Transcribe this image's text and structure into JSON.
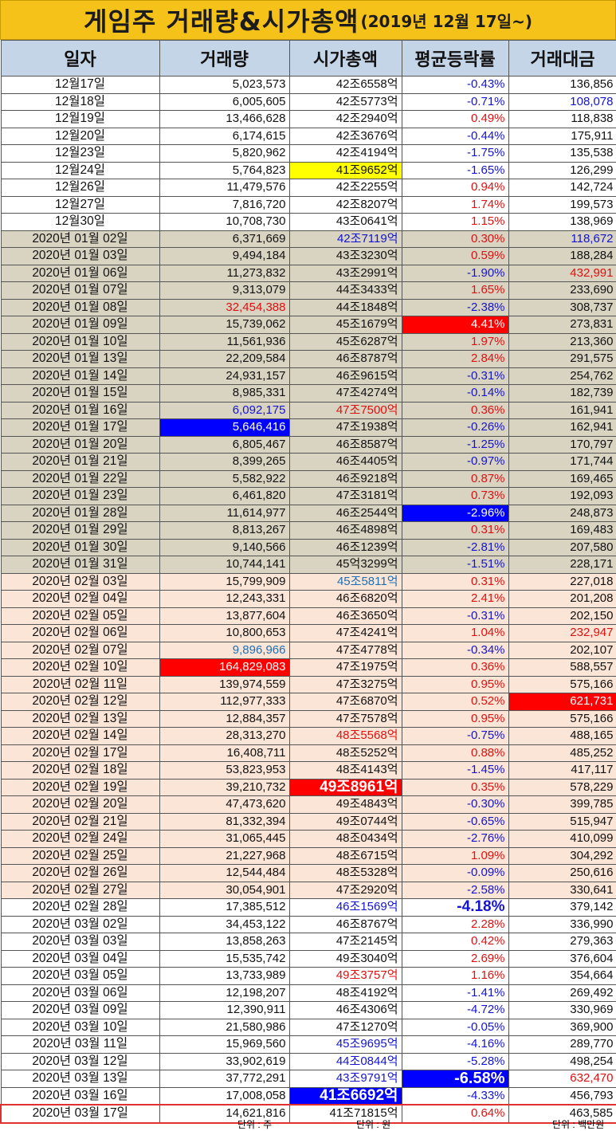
{
  "title": {
    "main": "게임주 거래량&시가총액",
    "sub": "(2019년 12월 17일~)"
  },
  "headers": [
    "일자",
    "거래량",
    "시가총액",
    "평균등락률",
    "거래대금"
  ],
  "units": {
    "volume": "단위 : 주",
    "cap": "단위 : 원",
    "amount": "단위 : 백만원"
  },
  "colors": {
    "header_bg": "#c5d5e8",
    "title_bg": "#f5c21a",
    "dec_bg": "#ffffff",
    "jan_bg": "#d9d3c2",
    "feb_bg": "#fbe5d6",
    "up": "#e01010",
    "down": "#1414d2"
  },
  "rows": [
    {
      "date": "12월17일",
      "volume": "5,023,573",
      "cap": "42조6558억",
      "change": "-0.43%",
      "amount": "136,856"
    },
    {
      "date": "12월18일",
      "volume": "6,005,605",
      "cap": "42조5773억",
      "change": "-0.71%",
      "amount": "108,078"
    },
    {
      "date": "12월19일",
      "volume": "13,466,628",
      "cap": "42조2940억",
      "change": "0.49%",
      "amount": "118,838"
    },
    {
      "date": "12월20일",
      "volume": "6,174,615",
      "cap": "42조3676억",
      "change": "-0.44%",
      "amount": "175,911"
    },
    {
      "date": "12월23일",
      "volume": "5,820,962",
      "cap": "42조4194억",
      "change": "-1.75%",
      "amount": "135,538"
    },
    {
      "date": "12월24일",
      "volume": "5,764,823",
      "cap": "41조9652억",
      "change": "-1.65%",
      "amount": "126,299"
    },
    {
      "date": "12월26일",
      "volume": "11,479,576",
      "cap": "42조2255억",
      "change": "0.94%",
      "amount": "142,724"
    },
    {
      "date": "12월27일",
      "volume": "7,816,720",
      "cap": "42조8207억",
      "change": "1.74%",
      "amount": "199,573"
    },
    {
      "date": "12월30일",
      "volume": "10,708,730",
      "cap": "43조0641억",
      "change": "1.15%",
      "amount": "138,969"
    },
    {
      "date": "2020년 01월 02일",
      "volume": "6,371,669",
      "cap": "42조7119억",
      "change": "0.30%",
      "amount": "118,672"
    },
    {
      "date": "2020년 01월 03일",
      "volume": "9,494,184",
      "cap": "43조3230억",
      "change": "0.59%",
      "amount": "188,284"
    },
    {
      "date": "2020년 01월 06일",
      "volume": "11,273,832",
      "cap": "43조2991억",
      "change": "-1.90%",
      "amount": "432,991"
    },
    {
      "date": "2020년 01월 07일",
      "volume": "9,313,079",
      "cap": "44조3433억",
      "change": "1.65%",
      "amount": "233,690"
    },
    {
      "date": "2020년 01월 08일",
      "volume": "32,454,388",
      "cap": "44조1848억",
      "change": "-2.38%",
      "amount": "308,737"
    },
    {
      "date": "2020년 01월 09일",
      "volume": "15,739,062",
      "cap": "45조1679억",
      "change": "4.41%",
      "amount": "273,831"
    },
    {
      "date": "2020년 01월 10일",
      "volume": "11,561,936",
      "cap": "45조6287억",
      "change": "1.97%",
      "amount": "213,360"
    },
    {
      "date": "2020년 01월 13일",
      "volume": "22,209,584",
      "cap": "46조8787억",
      "change": "2.84%",
      "amount": "291,575"
    },
    {
      "date": "2020년 01월 14일",
      "volume": "24,931,157",
      "cap": "46조9615억",
      "change": "-0.31%",
      "amount": "254,762"
    },
    {
      "date": "2020년 01월 15일",
      "volume": "8,985,331",
      "cap": "47조4274억",
      "change": "-0.14%",
      "amount": "182,739"
    },
    {
      "date": "2020년 01월 16일",
      "volume": "6,092,175",
      "cap": "47조7500억",
      "change": "0.36%",
      "amount": "161,941"
    },
    {
      "date": "2020년 01월 17일",
      "volume": "5,646,416",
      "cap": "47조1938억",
      "change": "-0.26%",
      "amount": "162,941"
    },
    {
      "date": "2020년 01월 20일",
      "volume": "6,805,467",
      "cap": "46조8587억",
      "change": "-1.25%",
      "amount": "170,797"
    },
    {
      "date": "2020년 01월 21일",
      "volume": "8,399,265",
      "cap": "46조4405억",
      "change": "-0.97%",
      "amount": "171,744"
    },
    {
      "date": "2020년 01월 22일",
      "volume": "5,582,922",
      "cap": "46조9218억",
      "change": "0.87%",
      "amount": "169,465"
    },
    {
      "date": "2020년 01월 23일",
      "volume": "6,461,820",
      "cap": "47조3181억",
      "change": "0.73%",
      "amount": "192,093"
    },
    {
      "date": "2020년 01월 28일",
      "volume": "11,614,977",
      "cap": "46조2544억",
      "change": "-2.96%",
      "amount": "248,873"
    },
    {
      "date": "2020년 01월 29일",
      "volume": "8,813,267",
      "cap": "46조4898억",
      "change": "0.31%",
      "amount": "169,483"
    },
    {
      "date": "2020년 01월 30일",
      "volume": "9,140,566",
      "cap": "46조1239억",
      "change": "-2.81%",
      "amount": "207,580"
    },
    {
      "date": "2020년 01월 31일",
      "volume": "10,744,141",
      "cap": "45억3299억",
      "change": "-1.51%",
      "amount": "228,171"
    },
    {
      "date": "2020년 02월 03일",
      "volume": "15,799,909",
      "cap": "45조5811억",
      "change": "0.31%",
      "amount": "227,018"
    },
    {
      "date": "2020년 02월 04일",
      "volume": "12,243,331",
      "cap": "46조6820억",
      "change": "2.41%",
      "amount": "201,208"
    },
    {
      "date": "2020년 02월 05일",
      "volume": "13,877,604",
      "cap": "46조3650억",
      "change": "-0.31%",
      "amount": "202,150"
    },
    {
      "date": "2020년 02월 06일",
      "volume": "10,800,653",
      "cap": "47조4241억",
      "change": "1.04%",
      "amount": "232,947"
    },
    {
      "date": "2020년 02월 07일",
      "volume": "9,896,966",
      "cap": "47조4778억",
      "change": "-0.34%",
      "amount": "202,107"
    },
    {
      "date": "2020년 02월 10일",
      "volume": "164,829,083",
      "cap": "47조1975억",
      "change": "0.36%",
      "amount": "588,557"
    },
    {
      "date": "2020년 02월 11일",
      "volume": "139,974,559",
      "cap": "47조3275억",
      "change": "0.95%",
      "amount": "575,166"
    },
    {
      "date": "2020년 02월 12일",
      "volume": "112,977,333",
      "cap": "47조6870억",
      "change": "0.52%",
      "amount": "621,731"
    },
    {
      "date": "2020년 02월 13일",
      "volume": "12,884,357",
      "cap": "47조7578억",
      "change": "0.95%",
      "amount": "575,166"
    },
    {
      "date": "2020년 02월 14일",
      "volume": "28,313,270",
      "cap": "48조5568억",
      "change": "-0.75%",
      "amount": "488,165"
    },
    {
      "date": "2020년 02월 17일",
      "volume": "16,408,711",
      "cap": "48조5252억",
      "change": "0.88%",
      "amount": "485,252"
    },
    {
      "date": "2020년 02월 18일",
      "volume": "53,823,953",
      "cap": "48조4143억",
      "change": "-1.45%",
      "amount": "417,117"
    },
    {
      "date": "2020년 02월 19일",
      "volume": "39,210,732",
      "cap": "49조8961억",
      "change": "0.35%",
      "amount": "578,229"
    },
    {
      "date": "2020년 02월 20일",
      "volume": "47,473,620",
      "cap": "49조4843억",
      "change": "-0.30%",
      "amount": "399,785"
    },
    {
      "date": "2020년 02월 21일",
      "volume": "81,332,394",
      "cap": "49조0744억",
      "change": "-0.65%",
      "amount": "515,947"
    },
    {
      "date": "2020년 02월 24일",
      "volume": "31,065,445",
      "cap": "48조0434억",
      "change": "-2.76%",
      "amount": "410,099"
    },
    {
      "date": "2020년 02월 25일",
      "volume": "21,227,968",
      "cap": "48조6715억",
      "change": "1.09%",
      "amount": "304,292"
    },
    {
      "date": "2020년 02월 26일",
      "volume": "12,544,484",
      "cap": "48조5328억",
      "change": "-0.09%",
      "amount": "250,616"
    },
    {
      "date": "2020년 02월 27일",
      "volume": "30,054,901",
      "cap": "47조2920억",
      "change": "-2.58%",
      "amount": "330,641"
    },
    {
      "date": "2020년 02월 28일",
      "volume": "17,385,512",
      "cap": "46조1569억",
      "change": "-4.18%",
      "amount": "379,142"
    },
    {
      "date": "2020년 03월 02일",
      "volume": "34,453,122",
      "cap": "46조8767억",
      "change": "2.28%",
      "amount": "336,990"
    },
    {
      "date": "2020년 03월 03일",
      "volume": "13,858,263",
      "cap": "47조2145억",
      "change": "0.42%",
      "amount": "279,363"
    },
    {
      "date": "2020년 03월 04일",
      "volume": "15,535,742",
      "cap": "49조3040억",
      "change": "2.69%",
      "amount": "376,604"
    },
    {
      "date": "2020년 03월 05일",
      "volume": "13,733,989",
      "cap": "49조3757억",
      "change": "1.16%",
      "amount": "354,664"
    },
    {
      "date": "2020년 03월 06일",
      "volume": "12,198,207",
      "cap": "48조4192억",
      "change": "-1.41%",
      "amount": "269,492"
    },
    {
      "date": "2020년 03월 09일",
      "volume": "12,390,911",
      "cap": "46조4306억",
      "change": "-4.72%",
      "amount": "330,969"
    },
    {
      "date": "2020년 03월 10일",
      "volume": "21,580,986",
      "cap": "47조1270억",
      "change": "-0.05%",
      "amount": "369,900"
    },
    {
      "date": "2020년 03월 11일",
      "volume": "15,969,560",
      "cap": "45조9695억",
      "change": "-4.16%",
      "amount": "289,770"
    },
    {
      "date": "2020년 03월 12일",
      "volume": "33,902,619",
      "cap": "44조0844억",
      "change": "-5.28%",
      "amount": "498,254"
    },
    {
      "date": "2020년 03월 13일",
      "volume": "37,772,291",
      "cap": "43조9791억",
      "change": "-6.58%",
      "amount": "632,470"
    },
    {
      "date": "2020년 03월 16일",
      "volume": "17,008,058",
      "cap": "41조6692억",
      "change": "-4.33%",
      "amount": "456,793"
    },
    {
      "date": "2020년 03월 17일",
      "volume": "14,621,816",
      "cap": "41조71815억",
      "change": "0.64%",
      "amount": "463,585"
    }
  ]
}
